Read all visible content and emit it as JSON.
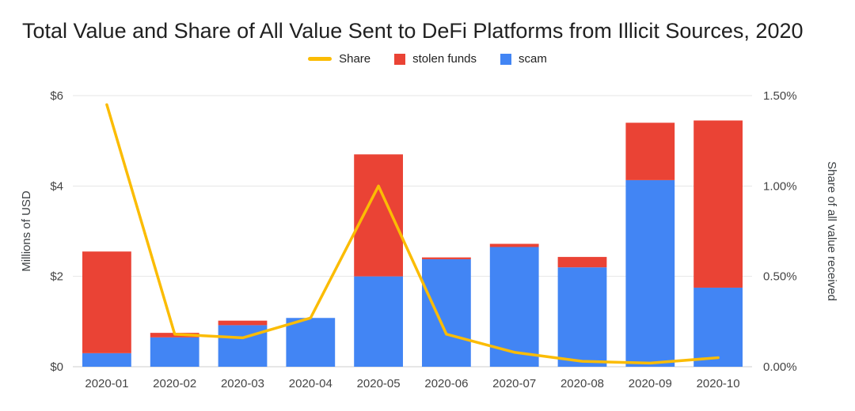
{
  "chart_data": {
    "type": "bar",
    "subtype": "stacked-bars-with-line-dual-axis",
    "title": "Total Value and Share of All Value Sent to DeFi Platforms from Illicit Sources, 2020",
    "grid": true,
    "legend_position": "top",
    "categories": [
      "2020-01",
      "2020-02",
      "2020-03",
      "2020-04",
      "2020-05",
      "2020-06",
      "2020-07",
      "2020-08",
      "2020-09",
      "2020-10"
    ],
    "series": [
      {
        "name": "scam",
        "type": "bar",
        "stack_order": 0,
        "color": "#4285F4",
        "axis": "left",
        "values": [
          0.3,
          0.65,
          0.92,
          1.08,
          2.0,
          2.38,
          2.65,
          2.2,
          4.13,
          1.75
        ]
      },
      {
        "name": "stolen funds",
        "type": "bar",
        "stack_order": 1,
        "color": "#EA4335",
        "axis": "left",
        "values": [
          2.25,
          0.1,
          0.1,
          0.0,
          2.7,
          0.04,
          0.07,
          0.23,
          1.27,
          3.7
        ]
      },
      {
        "name": "Share",
        "type": "line",
        "color": "#FBBC04",
        "axis": "right",
        "values": [
          1.45,
          0.18,
          0.16,
          0.27,
          1.0,
          0.18,
          0.08,
          0.03,
          0.02,
          0.05
        ]
      }
    ],
    "legend": [
      {
        "label": "Share",
        "color": "#FBBC04",
        "shape": "line"
      },
      {
        "label": "stolen funds",
        "color": "#EA4335",
        "shape": "square"
      },
      {
        "label": "scam",
        "color": "#4285F4",
        "shape": "square"
      }
    ],
    "left_axis": {
      "label": "Millions of USD",
      "min": 0,
      "max": 6,
      "ticks": [
        {
          "value": 0,
          "label": "$0"
        },
        {
          "value": 2,
          "label": "$2"
        },
        {
          "value": 4,
          "label": "$4"
        },
        {
          "value": 6,
          "label": "$6"
        }
      ]
    },
    "right_axis": {
      "label": "Share of all value received",
      "min": 0,
      "max": 1.5,
      "ticks": [
        {
          "value": 0.0,
          "label": "0.00%"
        },
        {
          "value": 0.5,
          "label": "0.50%"
        },
        {
          "value": 1.0,
          "label": "1.00%"
        },
        {
          "value": 1.5,
          "label": "1.50%"
        }
      ]
    },
    "colors": {
      "scam": "#4285F4",
      "stolen_funds": "#EA4335",
      "share_line": "#FBBC04",
      "gridline": "#e6e6e6",
      "baseline": "#cccccc",
      "tick_text": "#444444",
      "title_text": "#212121"
    }
  }
}
